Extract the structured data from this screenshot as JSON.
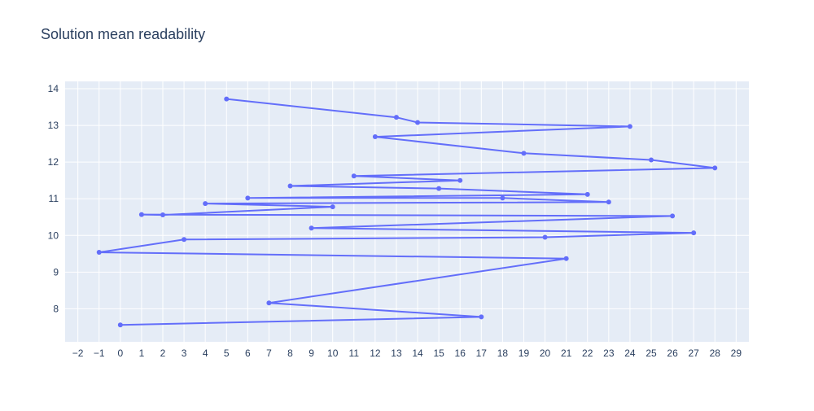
{
  "chart_data": {
    "type": "line",
    "title": "Solution mean readability",
    "xlabel": "",
    "ylabel": "",
    "xlim": [
      -2.6,
      29.6
    ],
    "ylim": [
      7.1,
      14.2
    ],
    "x_ticks": [
      -2,
      -1,
      0,
      1,
      2,
      3,
      4,
      5,
      6,
      7,
      8,
      9,
      10,
      11,
      12,
      13,
      14,
      15,
      16,
      17,
      18,
      19,
      20,
      21,
      22,
      23,
      24,
      25,
      26,
      27,
      28,
      29
    ],
    "y_ticks": [
      8,
      9,
      10,
      11,
      12,
      13,
      14
    ],
    "grid": true,
    "legend": "none",
    "colors": {
      "line": "#636efa",
      "plot_bg": "#e5ecf6",
      "grid": "#ffffff",
      "text": "#2a3f5f"
    },
    "series": [
      {
        "x": [
          5,
          13,
          14,
          24,
          12,
          19,
          25,
          28,
          11,
          16,
          8,
          15,
          22,
          6,
          18,
          23,
          4,
          10,
          2,
          1,
          26,
          9,
          27,
          20,
          3,
          -1,
          21,
          7,
          17,
          0
        ],
        "y": [
          13.72,
          13.22,
          13.08,
          12.97,
          12.69,
          12.24,
          12.06,
          11.84,
          11.62,
          11.5,
          11.35,
          11.28,
          11.12,
          11.02,
          11.02,
          10.91,
          10.87,
          10.78,
          10.56,
          10.57,
          10.53,
          10.2,
          10.07,
          9.95,
          9.89,
          9.54,
          9.37,
          8.16,
          7.78,
          7.56
        ]
      }
    ]
  }
}
